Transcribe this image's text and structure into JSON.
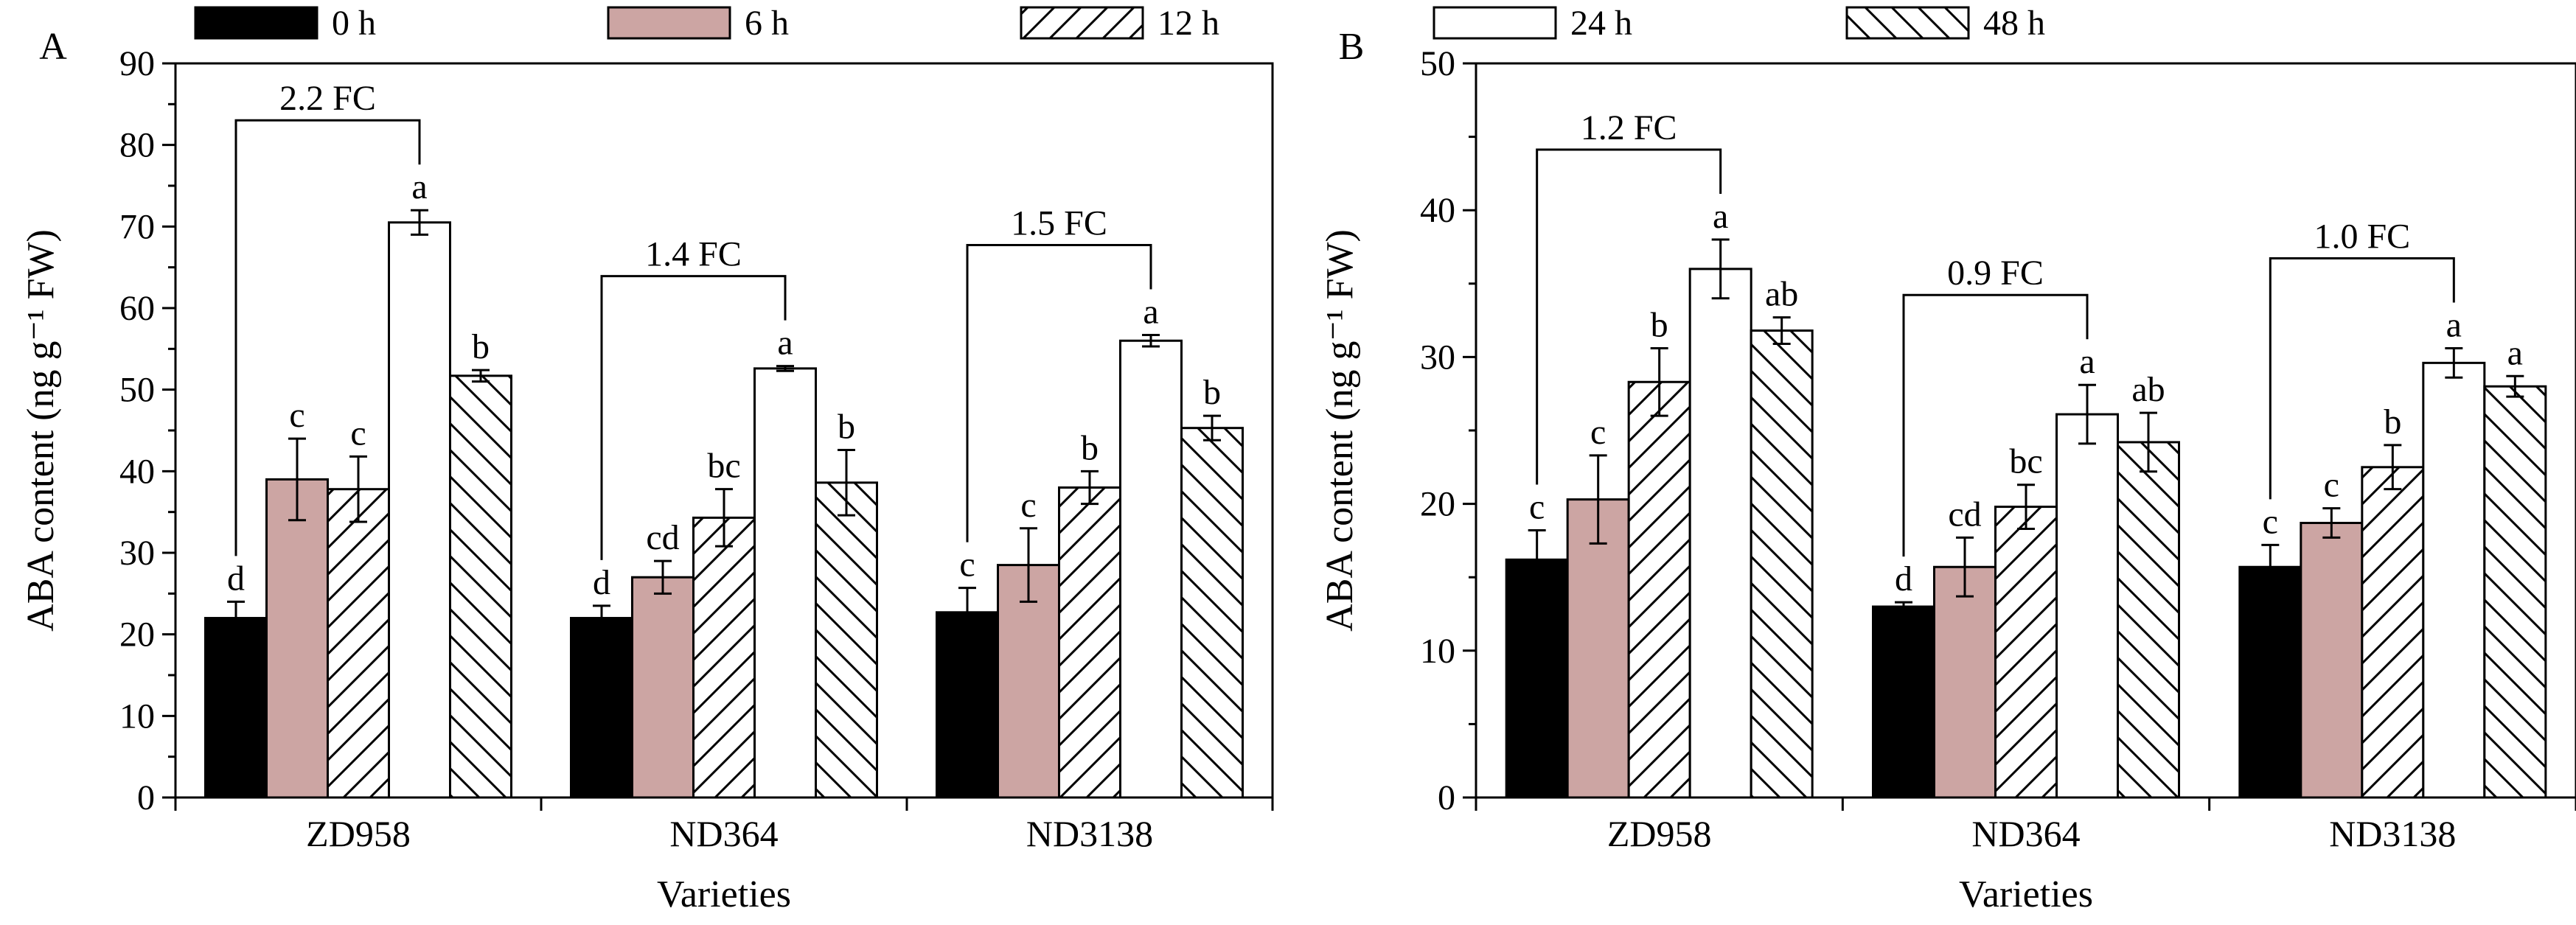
{
  "legend": {
    "entries": [
      {
        "label": "0 h",
        "color": "#000000",
        "pattern": "solid"
      },
      {
        "label": "6 h",
        "color": "#cca5a3",
        "pattern": "solid"
      },
      {
        "label": "12 h",
        "color": "#ffffff",
        "pattern": "diag-up"
      },
      {
        "label": "24 h",
        "color": "#ffffff",
        "pattern": "none"
      },
      {
        "label": "48 h",
        "color": "#ffffff",
        "pattern": "diag-down"
      }
    ]
  },
  "chart_data": [
    {
      "type": "bar",
      "panel": "A",
      "title": "",
      "xlabel": "Varieties",
      "ylabel": "ABA content (ng g⁻¹ FW)",
      "ylim": [
        0,
        90
      ],
      "yticks": [
        0,
        10,
        20,
        30,
        40,
        50,
        60,
        70,
        80,
        90
      ],
      "categories": [
        "ZD958",
        "ND364",
        "ND3138"
      ],
      "series": [
        {
          "name": "0 h",
          "values": [
            22,
            22,
            22.7
          ],
          "errors": [
            2,
            1.5,
            3
          ],
          "letters": [
            "d",
            "d",
            "c"
          ]
        },
        {
          "name": "6 h",
          "values": [
            39,
            27,
            28.5
          ],
          "errors": [
            5,
            2,
            4.5
          ],
          "letters": [
            "c",
            "cd",
            "c"
          ]
        },
        {
          "name": "12 h",
          "values": [
            37.8,
            34.3,
            38
          ],
          "errors": [
            4,
            3.5,
            2
          ],
          "letters": [
            "c",
            "bc",
            "b"
          ]
        },
        {
          "name": "24 h",
          "values": [
            70.5,
            52.6,
            56
          ],
          "errors": [
            1.5,
            0.3,
            0.7
          ],
          "letters": [
            "a",
            "a",
            "a"
          ]
        },
        {
          "name": "48 h",
          "values": [
            51.7,
            38.6,
            45.3
          ],
          "errors": [
            0.7,
            4,
            1.5
          ],
          "letters": [
            "b",
            "b",
            "b"
          ]
        }
      ],
      "fold_changes": [
        "2.2 FC",
        "1.4 FC",
        "1.5 FC"
      ]
    },
    {
      "type": "bar",
      "panel": "B",
      "title": "",
      "xlabel": "Varieties",
      "ylabel": "ABA content (ng g⁻¹ FW)",
      "ylim": [
        0,
        50
      ],
      "yticks": [
        0,
        10,
        20,
        30,
        40,
        50
      ],
      "categories": [
        "ZD958",
        "ND364",
        "ND3138"
      ],
      "series": [
        {
          "name": "0 h",
          "values": [
            16.2,
            13,
            15.7
          ],
          "errors": [
            2,
            0.3,
            1.5
          ],
          "letters": [
            "c",
            "d",
            "c"
          ]
        },
        {
          "name": "6 h",
          "values": [
            20.3,
            15.7,
            18.7
          ],
          "errors": [
            3,
            2,
            1
          ],
          "letters": [
            "c",
            "cd",
            "c"
          ]
        },
        {
          "name": "12 h",
          "values": [
            28.3,
            19.8,
            22.5
          ],
          "errors": [
            2.3,
            1.5,
            1.5
          ],
          "letters": [
            "b",
            "bc",
            "b"
          ]
        },
        {
          "name": "24 h",
          "values": [
            36,
            26.1,
            29.6
          ],
          "errors": [
            2,
            2,
            1
          ],
          "letters": [
            "a",
            "a",
            "a"
          ]
        },
        {
          "name": "48 h",
          "values": [
            31.8,
            24.2,
            28
          ],
          "errors": [
            0.9,
            2,
            0.7
          ],
          "letters": [
            "ab",
            "ab",
            "a"
          ]
        }
      ],
      "fold_changes": [
        "1.2 FC",
        "0.9 FC",
        "1.0 FC"
      ]
    }
  ]
}
